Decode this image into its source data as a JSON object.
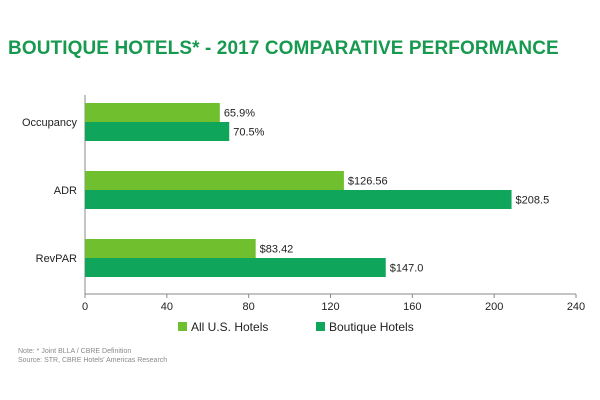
{
  "chart_data": {
    "type": "bar",
    "orientation": "horizontal",
    "title": "BOUTIQUE HOTELS* - 2017 COMPARATIVE PERFORMANCE",
    "categories": [
      "Occupancy",
      "ADR",
      "RevPAR"
    ],
    "series": [
      {
        "name": "All U.S. Hotels",
        "color": "#6fbf2f",
        "values": [
          65.9,
          126.56,
          83.42
        ],
        "labels": [
          "65.9%",
          "$126.56",
          "$83.42"
        ]
      },
      {
        "name": "Boutique Hotels",
        "color": "#0fa55a",
        "values": [
          70.5,
          208.5,
          147.0
        ],
        "labels": [
          "70.5%",
          "$208.5",
          "$147.0"
        ]
      }
    ],
    "xlim": [
      0,
      240
    ],
    "xticks": [
      "0",
      "40",
      "80",
      "120",
      "160",
      "200",
      "240"
    ],
    "grid": false,
    "legend_position": "bottom"
  },
  "footnotes": {
    "note": "Note: * Joint BLLA / CBRE Definition",
    "source": "Source: STR, CBRE Hotels' Americas Research"
  }
}
